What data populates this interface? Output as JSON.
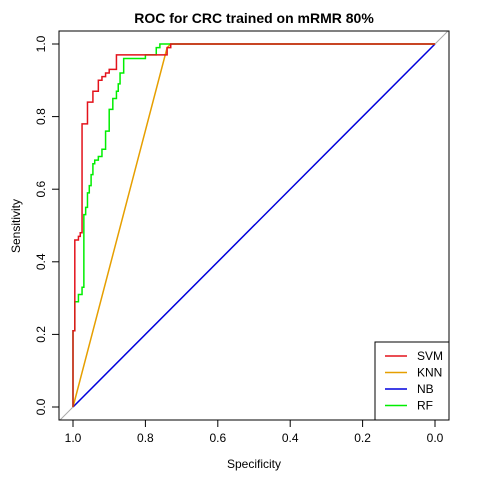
{
  "chart_data": {
    "type": "line",
    "title": "ROC for CRC trained on mRMR 80%",
    "xlabel": "Specificity",
    "ylabel": "Sensitivity",
    "xlim": [
      1.0,
      0.0
    ],
    "ylim": [
      0.0,
      1.0
    ],
    "x_ticks": [
      "1.0",
      "0.8",
      "0.6",
      "0.4",
      "0.2",
      "0.0"
    ],
    "y_ticks": [
      "0.0",
      "0.2",
      "0.4",
      "0.6",
      "0.8",
      "1.0"
    ],
    "x_tick_values": [
      1.0,
      0.8,
      0.6,
      0.4,
      0.2,
      0.0
    ],
    "y_tick_values": [
      0.0,
      0.2,
      0.4,
      0.6,
      0.8,
      1.0
    ],
    "reference_line": {
      "color": "#a8a8a8",
      "from": [
        1.1,
        -0.1
      ],
      "to": [
        -0.1,
        1.1
      ]
    },
    "legend": {
      "placement": "bottom-right"
    },
    "series": [
      {
        "name": "SVM",
        "color": "#e3121b",
        "points": [
          [
            1.0,
            0.0
          ],
          [
            1.0,
            0.21
          ],
          [
            0.995,
            0.21
          ],
          [
            0.995,
            0.46
          ],
          [
            0.985,
            0.46
          ],
          [
            0.985,
            0.47
          ],
          [
            0.98,
            0.47
          ],
          [
            0.98,
            0.48
          ],
          [
            0.975,
            0.48
          ],
          [
            0.975,
            0.78
          ],
          [
            0.96,
            0.78
          ],
          [
            0.96,
            0.84
          ],
          [
            0.945,
            0.84
          ],
          [
            0.945,
            0.87
          ],
          [
            0.93,
            0.87
          ],
          [
            0.93,
            0.9
          ],
          [
            0.92,
            0.9
          ],
          [
            0.92,
            0.91
          ],
          [
            0.91,
            0.91
          ],
          [
            0.91,
            0.92
          ],
          [
            0.9,
            0.92
          ],
          [
            0.9,
            0.93
          ],
          [
            0.88,
            0.93
          ],
          [
            0.88,
            0.97
          ],
          [
            0.74,
            0.97
          ],
          [
            0.74,
            0.99
          ],
          [
            0.73,
            0.99
          ],
          [
            0.73,
            1.0
          ],
          [
            0.0,
            1.0
          ]
        ]
      },
      {
        "name": "KNN",
        "color": "#e69f00",
        "points": [
          [
            1.0,
            0.0
          ],
          [
            0.74,
            0.99
          ],
          [
            0.73,
            1.0
          ],
          [
            0.0,
            1.0
          ]
        ]
      },
      {
        "name": "NB",
        "color": "#0000dd",
        "points": [
          [
            1.0,
            0.0
          ],
          [
            0.0,
            1.0
          ]
        ]
      },
      {
        "name": "RF",
        "color": "#00ee00",
        "points": [
          [
            1.0,
            0.0
          ],
          [
            1.0,
            0.21
          ],
          [
            0.995,
            0.21
          ],
          [
            0.995,
            0.29
          ],
          [
            0.985,
            0.29
          ],
          [
            0.985,
            0.31
          ],
          [
            0.975,
            0.31
          ],
          [
            0.975,
            0.33
          ],
          [
            0.97,
            0.33
          ],
          [
            0.97,
            0.53
          ],
          [
            0.965,
            0.53
          ],
          [
            0.965,
            0.55
          ],
          [
            0.96,
            0.55
          ],
          [
            0.96,
            0.59
          ],
          [
            0.955,
            0.59
          ],
          [
            0.955,
            0.61
          ],
          [
            0.95,
            0.61
          ],
          [
            0.95,
            0.64
          ],
          [
            0.945,
            0.64
          ],
          [
            0.945,
            0.67
          ],
          [
            0.94,
            0.67
          ],
          [
            0.94,
            0.68
          ],
          [
            0.93,
            0.68
          ],
          [
            0.93,
            0.69
          ],
          [
            0.92,
            0.69
          ],
          [
            0.92,
            0.71
          ],
          [
            0.91,
            0.71
          ],
          [
            0.91,
            0.76
          ],
          [
            0.9,
            0.76
          ],
          [
            0.9,
            0.82
          ],
          [
            0.89,
            0.82
          ],
          [
            0.89,
            0.85
          ],
          [
            0.88,
            0.85
          ],
          [
            0.88,
            0.87
          ],
          [
            0.875,
            0.87
          ],
          [
            0.875,
            0.89
          ],
          [
            0.87,
            0.89
          ],
          [
            0.87,
            0.92
          ],
          [
            0.86,
            0.92
          ],
          [
            0.86,
            0.96
          ],
          [
            0.8,
            0.96
          ],
          [
            0.8,
            0.97
          ],
          [
            0.77,
            0.97
          ],
          [
            0.77,
            0.99
          ],
          [
            0.76,
            0.99
          ],
          [
            0.76,
            1.0
          ],
          [
            0.0,
            1.0
          ]
        ]
      }
    ]
  }
}
